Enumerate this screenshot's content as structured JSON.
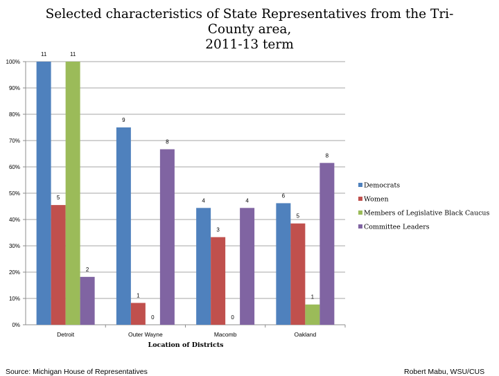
{
  "title": {
    "line1": "Selected characteristics of State Representatives from the Tri-",
    "line2": "County area,",
    "line3": "2011-13 term"
  },
  "chart_data": {
    "type": "bar",
    "title": "Selected characteristics of State Representatives from the Tri-County area, 2011-13 term",
    "xlabel": "Location of Districts",
    "ylabel": "",
    "ylim": [
      0,
      100
    ],
    "yticks": [
      "0%",
      "10%",
      "20%",
      "30%",
      "40%",
      "50%",
      "60%",
      "70%",
      "80%",
      "90%",
      "100%"
    ],
    "categories": [
      "Detroit",
      "Outer Wayne",
      "Macomb",
      "Oakland"
    ],
    "series": [
      {
        "name": "Democrats",
        "color": "#4F81BD",
        "values": [
          100,
          75,
          44.4,
          46.2
        ],
        "labels": [
          "11",
          "9",
          "4",
          "6"
        ]
      },
      {
        "name": "Women",
        "color": "#C0504D",
        "values": [
          45.5,
          8.3,
          33.3,
          38.5
        ],
        "labels": [
          "5",
          "1",
          "3",
          "5"
        ]
      },
      {
        "name": "Members of Legislative Black Caucus",
        "color": "#9BBB59",
        "values": [
          100,
          0,
          0,
          7.7
        ],
        "labels": [
          "11",
          "0",
          "0",
          "1"
        ]
      },
      {
        "name": "Committee Leaders",
        "color": "#8064A2",
        "values": [
          18.2,
          66.7,
          44.4,
          61.5
        ],
        "labels": [
          "2",
          "8",
          "4",
          "8"
        ]
      }
    ],
    "grid": true,
    "legend_position": "right"
  },
  "footer": {
    "source": "Source: Michigan House of Representatives",
    "credit": "Robert Mabu, WSU/CUS"
  }
}
